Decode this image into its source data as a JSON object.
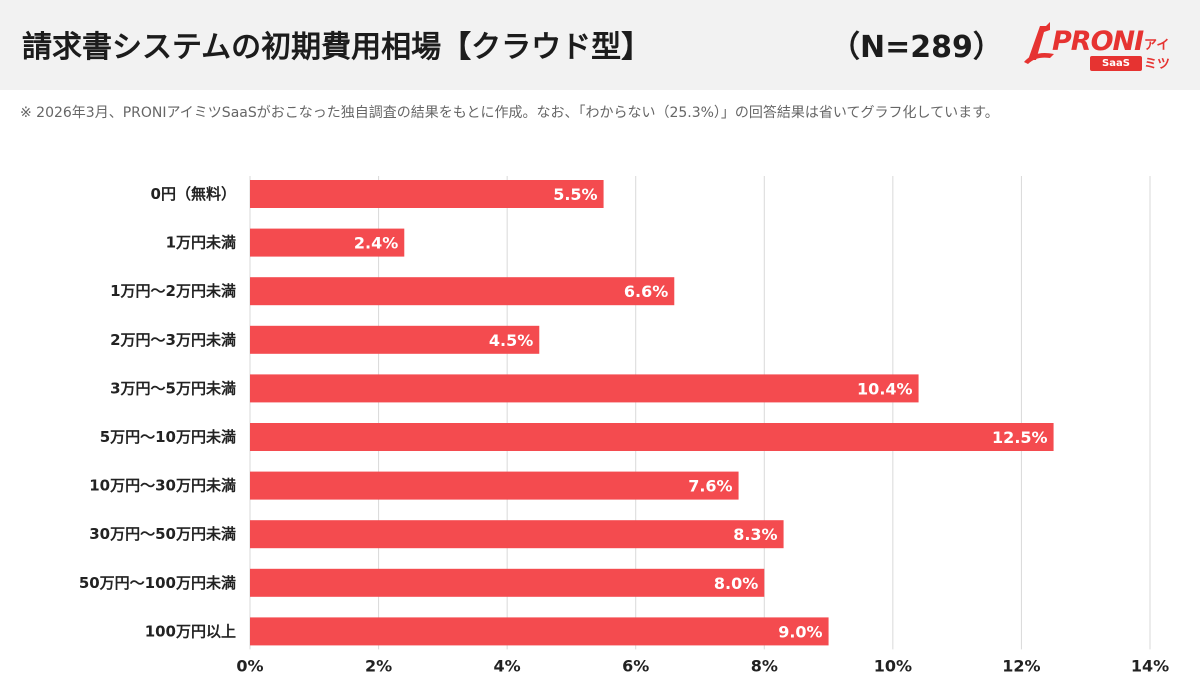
{
  "header": {
    "title": "請求書システムの初期費用相場【クラウド型】",
    "sample_size": "（N=289）"
  },
  "logo": {
    "brand": "PRONI",
    "sub": "アイミツ",
    "badge": "SaaS"
  },
  "note": "※ 2026年3月、PRONIアイミツSaaSがおこなった独自調査の結果をもとに作成。なお、「わからない（25.3%）」の回答結果は省いてグラフ化しています。",
  "colors": {
    "bar": "#f44b4f",
    "grid": "#d9d9d9",
    "header_bg": "#f2f2f2",
    "brand": "#e63331"
  },
  "chart_data": {
    "type": "bar",
    "orientation": "horizontal",
    "categories": [
      "0円（無料）",
      "1万円未満",
      "1万円〜2万円未満",
      "2万円〜3万円未満",
      "3万円〜5万円未満",
      "5万円〜10万円未満",
      "10万円〜30万円未満",
      "30万円〜50万円未満",
      "50万円〜100万円未満",
      "100万円以上"
    ],
    "values": [
      5.5,
      2.4,
      6.6,
      4.5,
      10.4,
      12.5,
      7.6,
      8.3,
      8.0,
      9.0
    ],
    "value_labels": [
      "5.5%",
      "2.4%",
      "6.6%",
      "4.5%",
      "10.4%",
      "12.5%",
      "7.6%",
      "8.3%",
      "8.0%",
      "9.0%"
    ],
    "xlim": [
      0,
      14
    ],
    "xticks": [
      0,
      2,
      4,
      6,
      8,
      10,
      12,
      14
    ],
    "xtick_labels": [
      "0%",
      "2%",
      "4%",
      "6%",
      "8%",
      "10%",
      "12%",
      "14%"
    ],
    "grid": true,
    "legend": "none"
  }
}
